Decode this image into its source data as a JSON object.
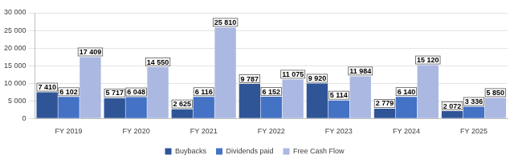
{
  "chart_data": {
    "type": "bar",
    "categories": [
      "FY 2019",
      "FY 2020",
      "FY 2021",
      "FY 2022",
      "FY 2023",
      "FY 2024",
      "FY 2025"
    ],
    "series": [
      {
        "name": "Buybacks",
        "color": "#2f5597",
        "values": [
          7410,
          5717,
          2625,
          9787,
          9920,
          2779,
          2072
        ],
        "value_labels": [
          "7 410",
          "5 717",
          "2 625",
          "9 787",
          "9 920",
          "2 779",
          "2 072"
        ]
      },
      {
        "name": "Dividends paid",
        "color": "#4472c4",
        "values": [
          6102,
          6048,
          6116,
          6152,
          5114,
          6140,
          3336
        ],
        "value_labels": [
          "6 102",
          "6 048",
          "6 116",
          "6 152",
          "5 114",
          "6 140",
          "3 336"
        ]
      },
      {
        "name": "Free Cash Flow",
        "color": "#aab8e2",
        "values": [
          17409,
          14550,
          25810,
          11075,
          11984,
          15120,
          5850
        ],
        "value_labels": [
          "17 409",
          "14 550",
          "25 810",
          "11 075",
          "11 984",
          "15 120",
          "5 850"
        ]
      }
    ],
    "ylim": [
      0,
      30000
    ],
    "yticks": [
      0,
      {
        "value": 5000,
        "label": "5 000"
      },
      {
        "value": 10000,
        "label": "10 000"
      },
      {
        "value": 15000,
        "label": "15 000"
      },
      {
        "value": 20000,
        "label": "20 000"
      },
      {
        "value": 25000,
        "label": "25 000"
      },
      {
        "value": 30000,
        "label": "30 000"
      }
    ],
    "grid": true,
    "legend": "bottom",
    "data_labels": true
  }
}
